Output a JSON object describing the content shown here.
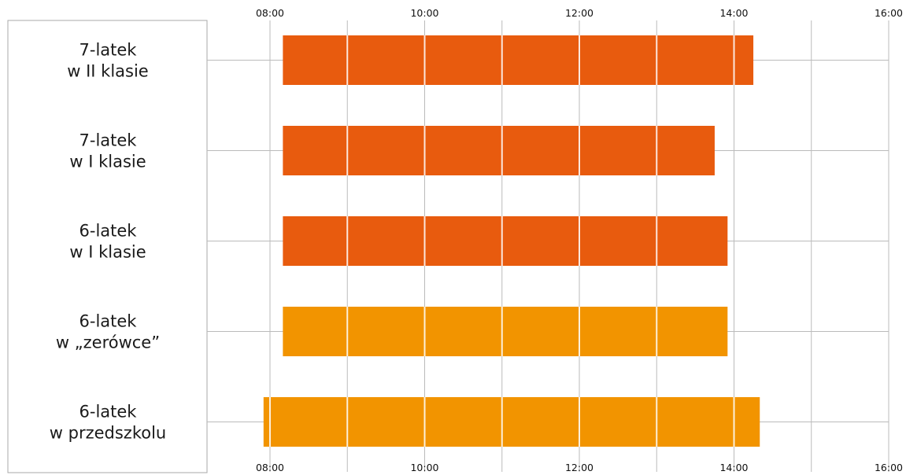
{
  "chart_data": {
    "type": "bar",
    "orientation": "horizontal",
    "x_unit": "time of day",
    "x_ticks": [
      "08:00",
      "10:00",
      "12:00",
      "14:00",
      "16:00"
    ],
    "xlim": [
      "08:00",
      "16:00"
    ],
    "grid": true,
    "categories": [
      {
        "lines": [
          "7-latek",
          "w II klasie"
        ]
      },
      {
        "lines": [
          "7-latek",
          "w I klasie"
        ]
      },
      {
        "lines": [
          "6-latek",
          "w I klasie"
        ]
      },
      {
        "lines": [
          "6-latek",
          "w „zerówce”"
        ]
      },
      {
        "lines": [
          "6-latek",
          "w przedszkolu"
        ]
      }
    ],
    "bars": [
      {
        "start": "08:10",
        "end": "14:15",
        "color": "#E85B0E"
      },
      {
        "start": "08:10",
        "end": "13:45",
        "color": "#E85B0E"
      },
      {
        "start": "08:10",
        "end": "13:55",
        "color": "#E85B0E"
      },
      {
        "start": "08:10",
        "end": "13:55",
        "color": "#F29400"
      },
      {
        "start": "07:55",
        "end": "14:20",
        "color": "#F29400"
      }
    ],
    "colors": {
      "dark_orange": "#E85B0E",
      "light_orange": "#F29400",
      "grid": "#BBBBBB"
    }
  }
}
